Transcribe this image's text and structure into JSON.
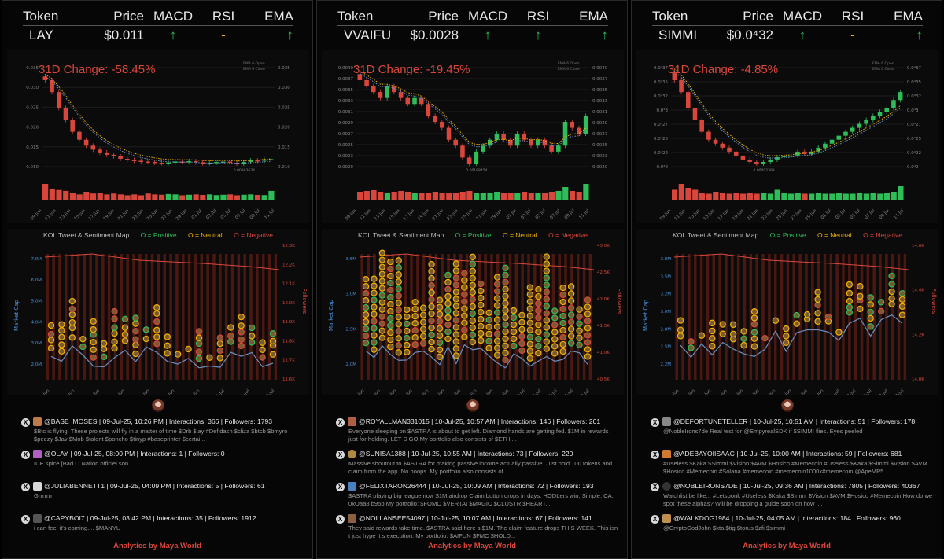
{
  "panels": [
    {
      "headers": [
        "Token",
        "Price",
        "MACD",
        "RSI",
        "EMA"
      ],
      "token": "LAY",
      "price": "$0.011",
      "macd": "↑",
      "rsi": "-",
      "ema": "↑",
      "change": "31D Change: -58.45%",
      "kol": {
        "title": "KOL Tweet & Sentiment Map",
        "positive": "O = Positive",
        "neutral": "O = Neutral",
        "negative": "O = Negative"
      },
      "tweets": [
        {
          "meta": "@BASE_MOSES | 09-Jul-25, 10:26 PM | Interactions: 366 | Followers: 1793",
          "body": "$Btc is flying! These projects will fly in a matter of time $Drb $lay #Defidash $cliza $btcb $bmyro $peezy $Jav $Mob $talent $poncho $tinyp #baseprinter $certai..."
        },
        {
          "meta": "@OLAY | 09-Jul-25, 08:00 PM | Interactions: 1 | Followers: 0",
          "body": "ICE spice [Bad O Nation officiel son"
        },
        {
          "meta": "@JULIABENNETT1 | 09-Jul-25, 04:09 PM | Interactions: 5 | Followers: 61",
          "body": "Grrrrrrr"
        },
        {
          "meta": "@CAPYBOI7 | 09-Jul-25, 03:42 PM | Interactions: 35 | Followers: 1912",
          "body": "i can feel it's coming.... $MANYU"
        }
      ],
      "footer": "Analytics by Maya World"
    },
    {
      "headers": [
        "Token",
        "Price",
        "MACD",
        "RSI",
        "EMA"
      ],
      "token": "VVAIFU",
      "price": "$0.0028",
      "macd": "↑",
      "rsi": "↑",
      "ema": "↑",
      "change": "31D Change: -19.45%",
      "kol": {
        "title": "KOL Tweet & Sentiment Map",
        "positive": "O = Positive",
        "neutral": "O = Neutral",
        "negative": "O = Negative"
      },
      "tweets": [
        {
          "meta": "@ROYALLMAN331015 | 10-Jul-25, 10:57 AM | Interactions: 146 | Followers: 201",
          "body": "Everyone sleeping on $ASTRA is about to get left. Diamond hands are getting fed. $1M in rewards just for holding. LET S GO My portfolio also consists of $ETH,..."
        },
        {
          "meta": "@SUNISA1388 | 10-Jul-25, 10:55 AM | Interactions: 73 | Followers: 220",
          "body": "Massive shoutout to $ASTRA for making passive income actually passive. Just hold 100 tokens and claim from the app. No hoops. My portfolio also consists of..."
        },
        {
          "meta": "@FELIXTARON26444 | 10-Jul-25, 10:09 AM | Interactions: 72 | Followers: 193",
          "body": "$ASTRA playing big league now $1M airdrop Claim button drops in days. HODLers win. Simple. CA: 0xOaa8 b95b My portfolio: $FOMO $VERTAI $MAGIC $CLUSTR $HEART..."
        },
        {
          "meta": "@NOLLANSEE54097 | 10-Jul-25, 10:07 AM | Interactions: 67 | Followers: 141",
          "body": "They said rewards take time. $ASTRA said here s $1M. The claim feature drops THIS WEEK. This isn t just hype it s execution. My portfolio: $AIFUN $FMC $HOLD..."
        }
      ],
      "footer": "Analytics by Maya World"
    },
    {
      "headers": [
        "Token",
        "Price",
        "MACD",
        "RSI",
        "EMA"
      ],
      "token": "SIMMI",
      "price": "$0.0⁴32",
      "macd": "↑",
      "rsi": "-",
      "ema": "↑",
      "change": "31D Change: -4.85%",
      "kol": {
        "title": "KOL Tweet & Sentiment Map",
        "positive": "O = Positive",
        "neutral": "O = Neutral",
        "negative": "O = Negative"
      },
      "tweets": [
        {
          "meta": "@DEFORTUNETELLER | 10-Jul-25, 10:51 AM | Interactions: 51 | Followers: 178",
          "body": "@NobleIrons7de Real test for @EmpyrealSDK if $SIMMI flies. Eyes peeled"
        },
        {
          "meta": "@ADEBAYOIISAAC | 10-Jul-25, 10:00 AM | Interactions: 59 | Followers: 681",
          "body": "#Useless $Kaka $Simmi $Vision $AVM $Hosico #Memecoin #Useless $Kaka $Simmi $Vision $AVM $Hosico #Memecoin #Solana #memecoin #memecoin1000x#memecoin @ApeMP5..."
        },
        {
          "meta": "@NOBLEIRONS7DE | 10-Jul-25, 09:36 AM | Interactions: 7805 | Followers: 40367",
          "body": "Watchlist be like... #Letsbonk #Useless $Kaka $Simmi $Vision $AVM $Hosico #Memecoin How do we spot these alphas? Will be dropping a guide soon on how i..."
        },
        {
          "meta": "@WALKDOG1984 | 10-Jul-25, 04:05 AM | Interactions: 184 | Followers: 960",
          "body": "@CryptoGodJohn $kta $tig $torus $zfi $simmi"
        }
      ],
      "footer": "Analytics by Maya World"
    }
  ],
  "charts": [
    {
      "yticks": [
        "0.035",
        "0.030",
        "0.025",
        "0.020",
        "0.015",
        "0.010"
      ],
      "low_label": "0.00983634",
      "legend": [
        "EMA 6 Open",
        "EMA 6 Close"
      ],
      "xticks": [
        "09 Jun",
        "11 Jun",
        "13 Jun",
        "15 Jun",
        "17 Jun",
        "19 Jun",
        "21 Jun",
        "23 Jun",
        "25 Jun",
        "27 Jun",
        "29 Jun",
        "01 Jul",
        "03 Jul",
        "05 Jul",
        "07 Jul",
        "09 Jul",
        "11 Jul"
      ],
      "close": [
        0.031,
        0.028,
        0.024,
        0.021,
        0.018,
        0.016,
        0.0145,
        0.0135,
        0.0128,
        0.0122,
        0.0118,
        0.0112,
        0.0109,
        0.0107,
        0.0105,
        0.0104,
        0.0102,
        0.0101,
        0.0103,
        0.0105,
        0.0104,
        0.0106,
        0.0103,
        0.0101,
        0.0102,
        0.0104,
        0.0105,
        0.0102,
        0.01,
        0.0104,
        0.0108,
        0.0107,
        0.011,
        0.0111
      ],
      "volume": [
        0.9,
        0.6,
        0.55,
        0.5,
        0.4,
        0.3,
        0.45,
        0.35,
        0.4,
        0.3,
        0.35,
        0.3,
        0.25,
        0.3,
        0.25,
        0.35,
        0.3,
        0.28,
        0.32,
        0.3,
        0.25,
        0.28,
        0.3,
        0.27,
        0.3,
        0.26,
        0.28,
        0.3,
        0.25,
        0.28,
        0.3,
        0.27,
        0.26,
        0.5
      ],
      "mcap_ticks": [
        "7.0M",
        "6.0M",
        "5.0M",
        "4.0M",
        "3.0M",
        "2.0M"
      ],
      "fol_ticks": [
        "12.3K",
        "12.2K",
        "12.1K",
        "12.0K",
        "11.9K",
        "11.8K",
        "11.7K",
        "11.6K"
      ],
      "kol_xticks": [
        "11-Jun",
        "15-Jun",
        "19-Jun",
        "17-Jun",
        "21-Jun",
        "25-Jun",
        "29-Jun",
        "01-Jul",
        "05-Jul",
        "09-Jul"
      ]
    },
    {
      "yticks": [
        "0.0040",
        "0.0037",
        "0.0035",
        "0.0033",
        "0.0031",
        "0.0029",
        "0.0027",
        "0.0025",
        "0.0023",
        "0.0020"
      ],
      "low_label": "0.00198454",
      "legend": [
        "EMA 6 Open",
        "EMA 6 Close"
      ],
      "xticks": [
        "09 Jun",
        "11 Jun",
        "13 Jun",
        "15 Jun",
        "17 Jun",
        "19 Jun",
        "21 Jun",
        "23 Jun",
        "25 Jun",
        "27 Jun",
        "29 Jun",
        "01 Jul",
        "03 Jul",
        "05 Jul",
        "07 Jul",
        "09 Jul",
        "11 Jul"
      ],
      "close": [
        0.0034,
        0.0033,
        0.0032,
        0.0031,
        0.0033,
        0.0032,
        0.0031,
        0.003,
        0.0031,
        0.003,
        0.0028,
        0.0027,
        0.0026,
        0.0024,
        0.0023,
        0.0021,
        0.002,
        0.0022,
        0.0023,
        0.0024,
        0.0025,
        0.0024,
        0.0023,
        0.0025,
        0.0024,
        0.0023,
        0.0024,
        0.0023,
        0.0022,
        0.0023,
        0.0027,
        0.0026,
        0.0025,
        0.0028
      ],
      "volume": [
        0.5,
        0.55,
        0.6,
        0.5,
        0.45,
        0.5,
        0.55,
        0.5,
        0.45,
        0.4,
        0.45,
        0.5,
        0.45,
        0.4,
        0.45,
        0.5,
        0.55,
        0.45,
        0.4,
        0.45,
        0.5,
        0.45,
        0.4,
        0.45,
        0.5,
        0.45,
        0.4,
        0.45,
        0.5,
        0.55,
        0.8,
        0.55,
        0.5,
        1.0
      ],
      "mcap_ticks": [
        "3.5M",
        "3.0M",
        "2.5M",
        "2.0M"
      ],
      "fol_ticks": [
        "43.0K",
        "42.5K",
        "42.0K",
        "41.5K",
        "41.0K",
        "40.5K"
      ],
      "kol_xticks": [
        "11-Jun",
        "13-Jun",
        "15-Jun",
        "17-Jun",
        "19-Jun",
        "21-Jun",
        "23-Jun",
        "25-Jun",
        "27-Jun",
        "29-Jun",
        "01-Jul",
        "03-Jul",
        "05-Jul",
        "07-Jul",
        "09-Jul"
      ]
    },
    {
      "yticks": [
        "0.0⁴37",
        "0.0⁴35",
        "0.0⁴32",
        "0.0⁴3",
        "0.0⁴27",
        "0.0⁴25",
        "0.0⁴22",
        "0.0⁴2"
      ],
      "low_label": "0.00002398",
      "legend": [
        "EMA 6 Open",
        "EMA 6 Close"
      ],
      "xticks": [
        "09 Jun",
        "11 Jun",
        "13 Jun",
        "15 Jun",
        "17 Jun",
        "19 Jun",
        "21 Jun",
        "23 Jun",
        "25 Jun",
        "27 Jun",
        "29 Jun",
        "01 Jul",
        "03 Jul",
        "05 Jul",
        "07 Jul",
        "09 Jul",
        "11 Jul"
      ],
      "close": [
        3.45,
        3.3,
        3.1,
        2.95,
        2.8,
        2.7,
        2.65,
        2.6,
        2.55,
        2.5,
        2.45,
        2.42,
        2.4,
        2.42,
        2.45,
        2.48,
        2.5,
        2.5,
        2.55,
        2.52,
        2.55,
        2.6,
        2.65,
        2.7,
        2.75,
        2.8,
        2.85,
        2.9,
        2.95,
        3.0,
        3.05,
        3.1,
        3.2,
        3.3
      ],
      "volume": [
        0.5,
        0.8,
        0.6,
        0.5,
        0.35,
        0.3,
        0.4,
        0.35,
        0.3,
        0.35,
        0.3,
        0.35,
        0.3,
        0.35,
        0.3,
        0.5,
        0.35,
        0.3,
        0.35,
        0.3,
        0.3,
        0.35,
        0.3,
        0.3,
        0.35,
        0.3,
        0.3,
        0.35,
        0.3,
        0.35,
        0.3,
        0.35,
        0.4,
        0.7
      ],
      "mcap_ticks": [
        "3.8M",
        "3.5M",
        "3.2M",
        "3.0M",
        "2.8M",
        "2.5M",
        "2.2M"
      ],
      "fol_ticks": [
        "14.6K",
        "14.4K",
        "14.2K",
        "14.0K"
      ],
      "kol_xticks": [
        "11-Jun",
        "13-Jun",
        "15-Jun",
        "17-Jun",
        "19-Jun",
        "21-Jun",
        "23-Jun",
        "25-Jun",
        "27-Jun",
        "29-Jun",
        "01-Jul",
        "03-Jul",
        "05-Jul",
        "07-Jul",
        "09-Jul"
      ]
    }
  ],
  "colors": {
    "up": "#2ebd59",
    "down": "#d9473c",
    "neutral": "#f0b400",
    "mcap": "#6a8fc0",
    "follower": "#d9473c"
  }
}
